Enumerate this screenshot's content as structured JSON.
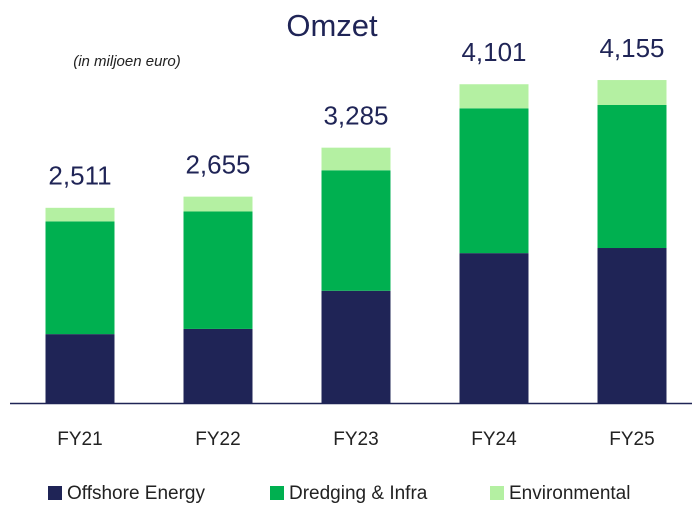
{
  "chart_data": {
    "type": "stacked_bar",
    "title": "Omzet",
    "subtitle": "(in miljoen euro)",
    "categories": [
      "FY21",
      "FY22",
      "FY23",
      "FY24",
      "FY25"
    ],
    "series": [
      {
        "name": "Offshore Energy",
        "color": "#1f2456",
        "values": [
          886,
          953,
          1444,
          1928,
          1994
        ]
      },
      {
        "name": "Dredging & Infra",
        "color": "#00b050",
        "values": [
          1450,
          1511,
          1550,
          1863,
          1840
        ]
      },
      {
        "name": "Environmental",
        "color": "#b4f0a2",
        "values": [
          175,
          191,
          291,
          310,
          321
        ]
      }
    ],
    "total_labels": [
      "2,511",
      "2,655",
      "3,285",
      "4,101",
      "4,155"
    ],
    "ylim": [
      0,
      4400
    ]
  }
}
